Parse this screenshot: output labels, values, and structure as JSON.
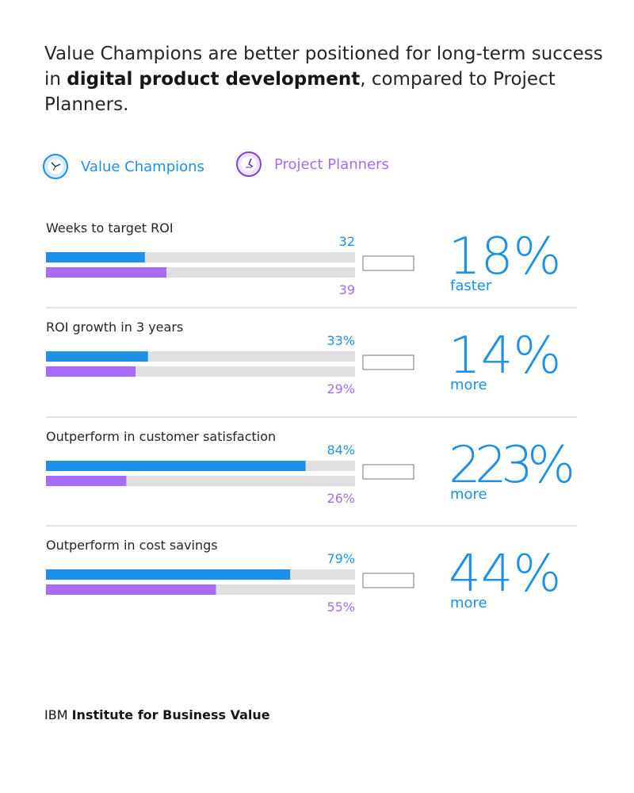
{
  "headline": {
    "part1": "Value Champions are better positioned for long-term success in ",
    "bold": "digital product development",
    "part2": ", compared to Project Planners."
  },
  "colors": {
    "champions": "#1e90e6",
    "planners": "#a66cf5",
    "track": "#e0e0e0",
    "divider": "#c6c6c6",
    "connector": "#8d8d8d",
    "label": "#262626"
  },
  "legend": {
    "champions": {
      "label": "Value Champions",
      "icon": "clock-fast-icon"
    },
    "planners": {
      "label": "Project Planners",
      "icon": "clock-slow-icon"
    }
  },
  "chart_data": {
    "type": "bar",
    "orientation": "horizontal",
    "series": [
      {
        "name": "Value Champions",
        "color": "#1e90e6"
      },
      {
        "name": "Project Planners",
        "color": "#a66cf5"
      }
    ],
    "rows": [
      {
        "label": "Weeks to target ROI",
        "scale_max": 100,
        "values": [
          32,
          39
        ],
        "value_labels": [
          "32",
          "39"
        ],
        "stat": "18%",
        "stat_label": "faster"
      },
      {
        "label": "ROI growth in 3 years",
        "scale_max": 100,
        "values": [
          33,
          29
        ],
        "value_labels": [
          "33%",
          "29%"
        ],
        "stat": "14%",
        "stat_label": "more"
      },
      {
        "label": "Outperform in customer satisfaction",
        "scale_max": 100,
        "values": [
          84,
          26
        ],
        "value_labels": [
          "84%",
          "26%"
        ],
        "stat": "223%",
        "stat_label": "more"
      },
      {
        "label": "Outperform in cost savings",
        "scale_max": 100,
        "values": [
          79,
          55
        ],
        "value_labels": [
          "79%",
          "55%"
        ],
        "stat": "44%",
        "stat_label": "more"
      }
    ]
  },
  "footer": {
    "brand": "IBM",
    "name": "Institute for Business Value"
  }
}
